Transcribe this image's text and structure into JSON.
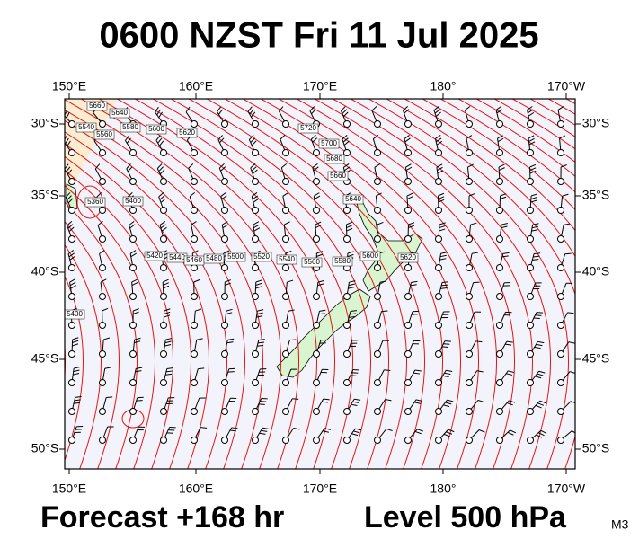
{
  "header": {
    "title": "0600 NZST Fri 11 Jul 2025"
  },
  "map": {
    "longitude_labels": [
      "150°E",
      "160°E",
      "170°E",
      "180°",
      "170°W"
    ],
    "latitude_labels": [
      "30°S",
      "35°S",
      "40°S",
      "45°S",
      "50°S"
    ],
    "contour_labels": [
      "5660",
      "5640",
      "5540",
      "5560",
      "5580",
      "5600",
      "5620",
      "5720",
      "5700",
      "5680",
      "5660",
      "5640",
      "5360",
      "5400",
      "5420",
      "5440",
      "5460",
      "5480",
      "5500",
      "5520",
      "5540",
      "5560",
      "5580",
      "5600",
      "5620",
      "5400"
    ]
  },
  "footer": {
    "forecast": "Forecast +168 hr",
    "level": "Level 500 hPa",
    "code": "M3"
  }
}
